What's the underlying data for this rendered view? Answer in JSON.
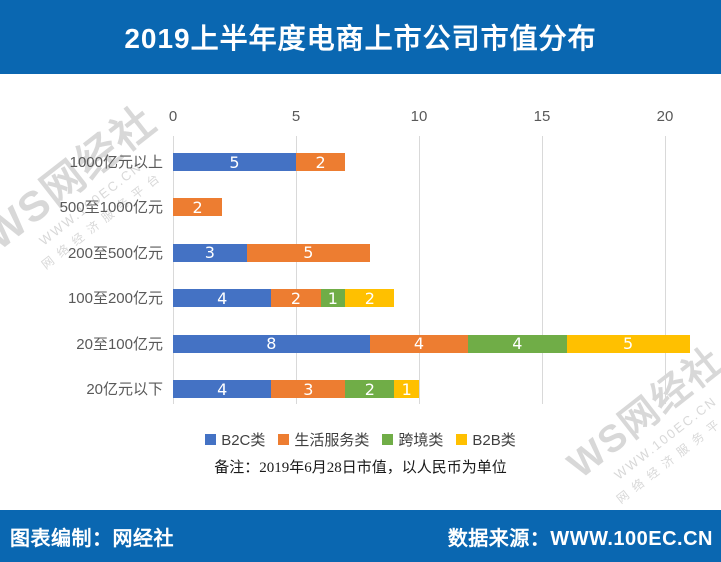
{
  "header": {
    "title": "2019上半年度电商上市公司市值分布"
  },
  "watermark": {
    "brand": "WS网经社",
    "url": "WWW.100EC.CN",
    "slogan": "网络经济服务平台"
  },
  "chart_data": {
    "type": "bar",
    "orientation": "horizontal",
    "stacked": true,
    "title": "2019上半年度电商上市公司市值分布",
    "categories": [
      "1000亿元以上",
      "500至1000亿元",
      "200至500亿元",
      "100至200亿元",
      "20至100亿元",
      "20亿元以下"
    ],
    "series": [
      {
        "name": "B2C类",
        "slug": "b2c",
        "color": "#4472C4",
        "values": [
          5,
          0,
          3,
          4,
          8,
          4
        ]
      },
      {
        "name": "生活服务类",
        "slug": "life-services",
        "color": "#ED7D31",
        "values": [
          2,
          2,
          5,
          2,
          4,
          3
        ]
      },
      {
        "name": "跨境类",
        "slug": "cross-border",
        "color": "#70AD47",
        "values": [
          0,
          0,
          0,
          1,
          4,
          2
        ]
      },
      {
        "name": "B2B类",
        "slug": "b2b",
        "color": "#FFC000",
        "values": [
          0,
          0,
          0,
          2,
          5,
          1
        ]
      }
    ],
    "x_ticks": [
      0,
      5,
      10,
      15,
      20
    ],
    "xlim": [
      0,
      21
    ],
    "grid": true,
    "legend_position": "bottom",
    "note": "备注：2019年6月28日市值，以人民币为单位"
  },
  "footer": {
    "left": "图表编制：网经社",
    "right": "数据来源：WWW.100EC.CN"
  },
  "colors": {
    "banner": "#0a67b1",
    "grid": "#d9d9d9",
    "axis_text": "#595959",
    "watermark": "#d8d8d8"
  }
}
